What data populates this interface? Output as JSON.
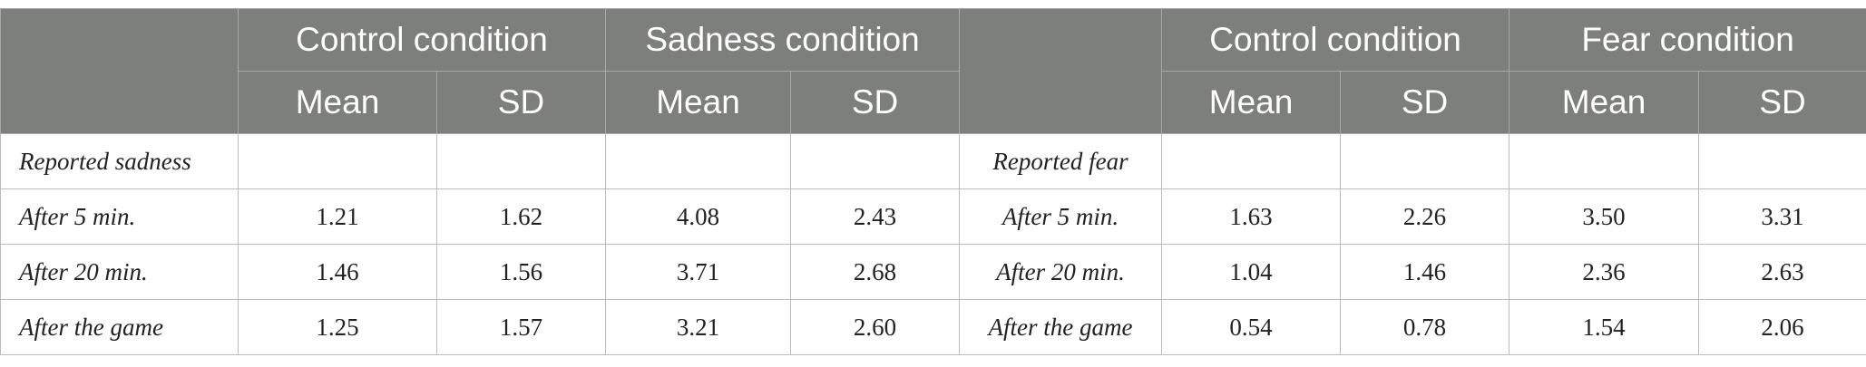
{
  "header": {
    "left_groups": [
      {
        "label": "Control condition"
      },
      {
        "label": "Sadness condition"
      }
    ],
    "right_groups": [
      {
        "label": "Control condition"
      },
      {
        "label": "Fear condition"
      }
    ],
    "sub": {
      "mean": "Mean",
      "sd": "SD"
    }
  },
  "rows": [
    {
      "left_label": "Reported sadness",
      "left_values": [
        "",
        "",
        "",
        ""
      ],
      "right_label": "Reported fear",
      "right_values": [
        "",
        "",
        "",
        ""
      ]
    },
    {
      "left_label": "After 5 min.",
      "left_values": [
        "1.21",
        "1.62",
        "4.08",
        "2.43"
      ],
      "right_label": "After 5 min.",
      "right_values": [
        "1.63",
        "2.26",
        "3.50",
        "3.31"
      ]
    },
    {
      "left_label": "After 20 min.",
      "left_values": [
        "1.46",
        "1.56",
        "3.71",
        "2.68"
      ],
      "right_label": "After 20 min.",
      "right_values": [
        "1.04",
        "1.46",
        "2.36",
        "2.63"
      ]
    },
    {
      "left_label": "After the game",
      "left_values": [
        "1.25",
        "1.57",
        "3.21",
        "2.60"
      ],
      "right_label": "After the game",
      "right_values": [
        "0.54",
        "0.78",
        "1.54",
        "2.06"
      ]
    }
  ]
}
